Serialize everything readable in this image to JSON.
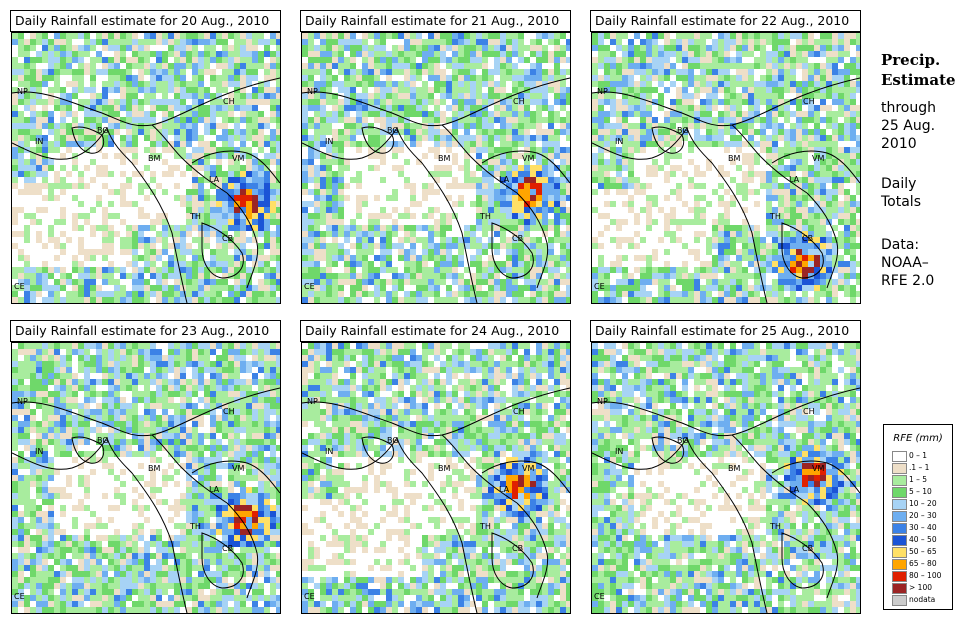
{
  "panels": [
    {
      "title": "Daily Rainfall estimate for  20 Aug., 2010",
      "storm": [
        0.86,
        0.62
      ]
    },
    {
      "title": "Daily Rainfall estimate for  21 Aug., 2010",
      "storm": [
        0.84,
        0.58
      ]
    },
    {
      "title": "Daily Rainfall estimate for  22 Aug., 2010",
      "storm": [
        0.78,
        0.84
      ]
    },
    {
      "title": "Daily Rainfall estimate for  23 Aug., 2010",
      "storm": [
        0.86,
        0.64
      ]
    },
    {
      "title": "Daily Rainfall estimate for  24 Aug., 2010",
      "storm": [
        0.8,
        0.52
      ]
    },
    {
      "title": "Daily Rainfall estimate for  25 Aug., 2010",
      "storm": [
        0.82,
        0.48
      ]
    }
  ],
  "country_labels": {
    "np": "NP",
    "ch": "CH",
    "in": "IN",
    "bg": "BG",
    "bm": "BM",
    "vm": "VM",
    "la": "LA",
    "th": "TH",
    "cb": "CB",
    "ce": "CE"
  },
  "side": {
    "line1": "Precip.",
    "line2": "Estimate",
    "through": "through",
    "date": "25 Aug.",
    "year": "2010",
    "daily": "Daily",
    "totals": "Totals",
    "data_label": "Data:",
    "noaa": "NOAA–",
    "rfe": "RFE 2.0"
  },
  "legend": {
    "title": "RFE (mm)",
    "items": [
      {
        "label": "0 – 1",
        "color": "#ffffff"
      },
      {
        "label": ".1 – 1",
        "color": "#eedfc8"
      },
      {
        "label": "1 – 5",
        "color": "#a8ec9e"
      },
      {
        "label": "5 – 10",
        "color": "#6fd86a"
      },
      {
        "label": "10 – 20",
        "color": "#a7d3f5"
      },
      {
        "label": "20 – 30",
        "color": "#6eaef0"
      },
      {
        "label": "30 – 40",
        "color": "#3c82e6"
      },
      {
        "label": "40 – 50",
        "color": "#1b54d6"
      },
      {
        "label": "50 – 65",
        "color": "#ffe066"
      },
      {
        "label": "65 – 80",
        "color": "#ffa500"
      },
      {
        "label": "80 – 100",
        "color": "#e02000"
      },
      {
        "label": "> 100",
        "color": "#9b2424"
      },
      {
        "label": "nodata",
        "color": "#cccccc"
      }
    ]
  }
}
